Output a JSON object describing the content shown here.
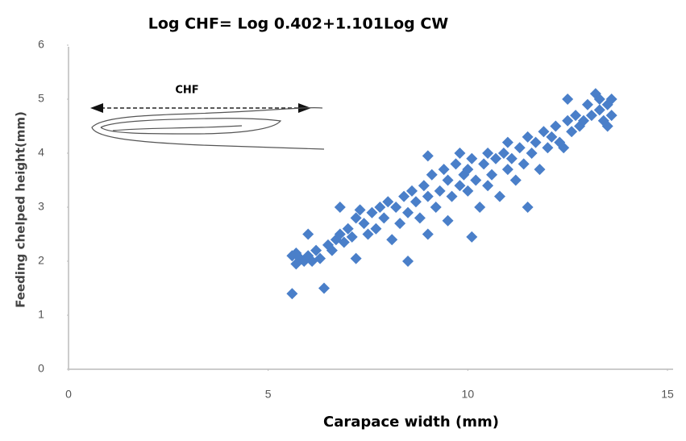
{
  "chart_data": {
    "type": "scatter",
    "title": "Log CHF= Log 0.402+1.101Log CW",
    "x_label": "Carapace width (mm)",
    "y_label": "Feeding chelped height(mm)",
    "annotation": "CHF",
    "color": "#4a7fc9",
    "xlim": [
      0,
      15
    ],
    "ylim": [
      0,
      6
    ],
    "xticks": [
      0,
      5,
      10,
      15
    ],
    "yticks": [
      0,
      1,
      2,
      3,
      4,
      5,
      6
    ],
    "x": [
      5.6,
      5.7,
      5.8,
      5.9,
      5.6,
      5.7,
      6.0,
      6.1,
      6.0,
      6.2,
      6.3,
      6.4,
      6.5,
      6.6,
      6.7,
      6.8,
      6.9,
      6.8,
      7.0,
      7.1,
      7.2,
      7.2,
      7.3,
      7.4,
      7.5,
      7.6,
      7.7,
      7.8,
      7.9,
      8.0,
      8.1,
      8.2,
      8.3,
      8.4,
      8.5,
      8.5,
      8.6,
      8.7,
      8.8,
      8.9,
      9.0,
      9.0,
      9.0,
      9.1,
      9.2,
      9.3,
      9.4,
      9.5,
      9.5,
      9.6,
      9.7,
      9.8,
      9.8,
      9.9,
      10.0,
      10.0,
      10.1,
      10.1,
      10.2,
      10.3,
      10.4,
      10.5,
      10.5,
      10.6,
      10.7,
      10.8,
      10.9,
      11.0,
      11.0,
      11.1,
      11.2,
      11.3,
      11.4,
      11.5,
      11.5,
      11.6,
      11.7,
      11.8,
      11.9,
      12.0,
      12.1,
      12.2,
      12.3,
      12.4,
      12.5,
      12.5,
      12.6,
      12.7,
      12.8,
      12.9,
      13.0,
      13.1,
      13.2,
      13.3,
      13.3,
      13.4,
      13.5,
      13.6,
      13.6,
      13.5
    ],
    "values": [
      2.1,
      1.95,
      2.05,
      2.0,
      1.4,
      2.15,
      2.1,
      2.0,
      2.5,
      2.2,
      2.05,
      1.5,
      2.3,
      2.2,
      2.4,
      2.5,
      2.35,
      3.0,
      2.6,
      2.45,
      2.05,
      2.8,
      2.95,
      2.7,
      2.5,
      2.9,
      2.6,
      3.0,
      2.8,
      3.1,
      2.4,
      3.0,
      2.7,
      3.2,
      2.0,
      2.9,
      3.3,
      3.1,
      2.8,
      3.4,
      3.95,
      3.2,
      2.5,
      3.6,
      3.0,
      3.3,
      3.7,
      2.75,
      3.5,
      3.2,
      3.8,
      4.0,
      3.4,
      3.6,
      3.3,
      3.7,
      2.45,
      3.9,
      3.5,
      3.0,
      3.8,
      4.0,
      3.4,
      3.6,
      3.9,
      3.2,
      4.0,
      3.7,
      4.2,
      3.9,
      3.5,
      4.1,
      3.8,
      4.3,
      3.0,
      4.0,
      4.2,
      3.7,
      4.4,
      4.1,
      4.3,
      4.5,
      4.2,
      4.1,
      5.0,
      4.6,
      4.4,
      4.7,
      4.5,
      4.6,
      4.9,
      4.7,
      5.1,
      4.8,
      5.0,
      4.6,
      4.9,
      5.0,
      4.7,
      4.5
    ]
  }
}
